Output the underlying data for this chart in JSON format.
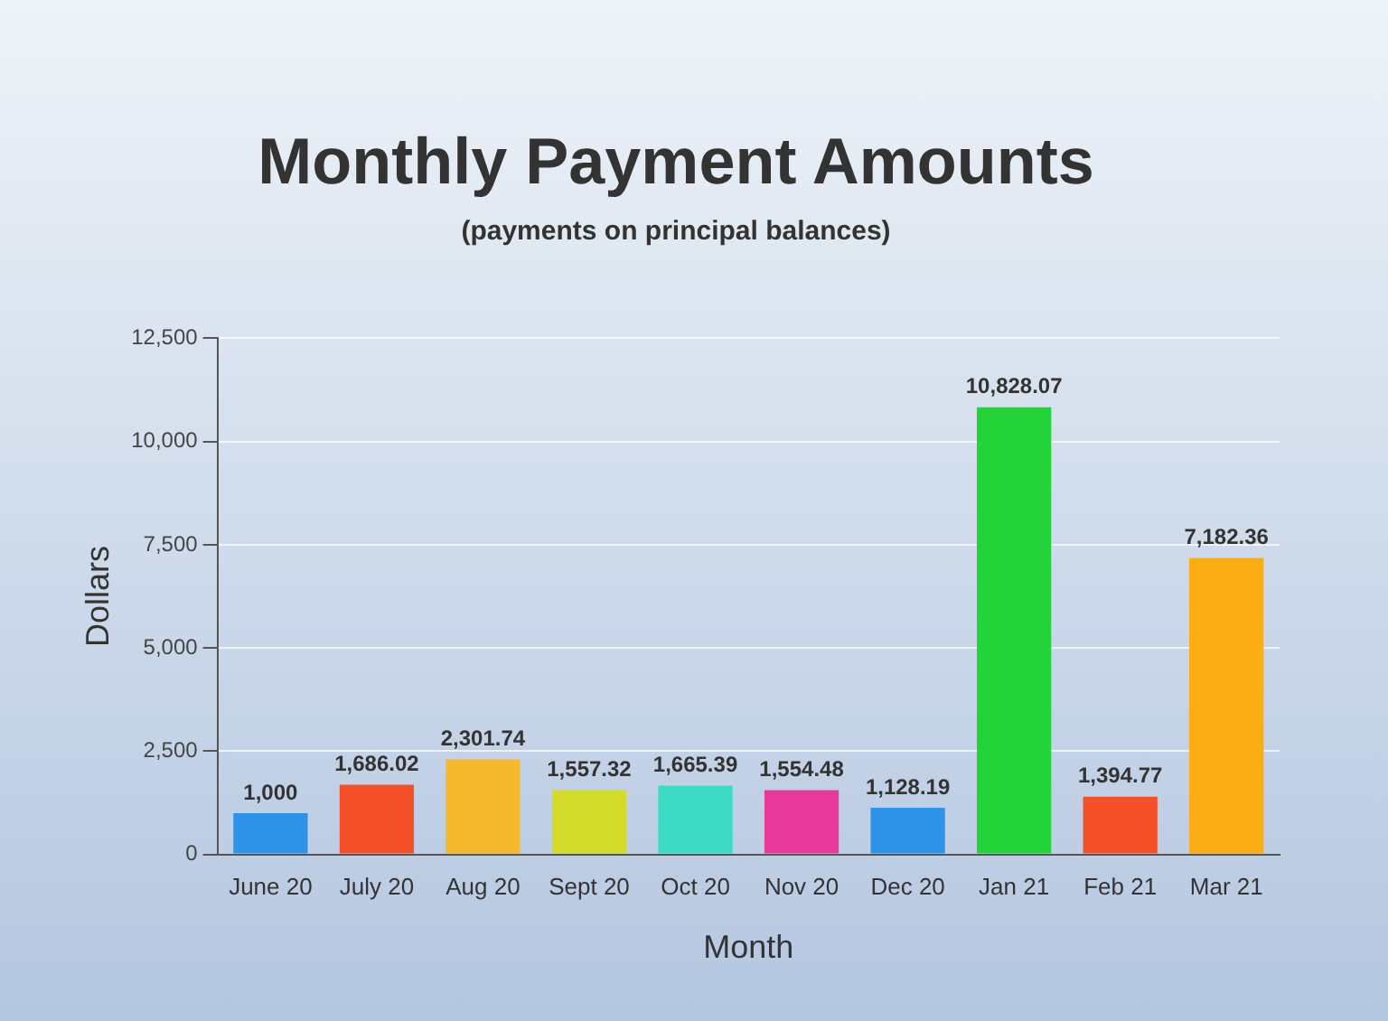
{
  "chart_data": {
    "type": "bar",
    "title": "Monthly Payment Amounts",
    "subtitle": "(payments on principal balances)",
    "xlabel": "Month",
    "ylabel": "Dollars",
    "categories": [
      "June 20",
      "July 20",
      "Aug 20",
      "Sept 20",
      "Oct 20",
      "Nov 20",
      "Dec 20",
      "Jan 21",
      "Feb 21",
      "Mar 21"
    ],
    "values": [
      1000,
      1686.02,
      2301.74,
      1557.32,
      1665.39,
      1554.48,
      1128.19,
      10828.07,
      1394.77,
      7182.36
    ],
    "colors": [
      "#2e93e8",
      "#f4502a",
      "#f5b82e",
      "#d4dc2a",
      "#3ddbc6",
      "#e8399a",
      "#2e93e8",
      "#22d33a",
      "#f4502a",
      "#fbad14"
    ],
    "ylim": [
      0,
      12500
    ],
    "yticks": [
      {
        "value": 0,
        "label": "0"
      },
      {
        "value": 2500,
        "label": "2,500"
      },
      {
        "value": 5000,
        "label": "5,000"
      },
      {
        "value": 7500,
        "label": "7,500"
      },
      {
        "value": 10000,
        "label": "10,000"
      },
      {
        "value": 12500,
        "label": "12,500"
      }
    ],
    "value_labels": [
      "1,000",
      "1,686.02",
      "2,301.74",
      "1,557.32",
      "1,665.39",
      "1,554.48",
      "1,128.19",
      "10,828.07",
      "1,394.77",
      "7,182.36"
    ],
    "grid": "y",
    "legend": false
  }
}
